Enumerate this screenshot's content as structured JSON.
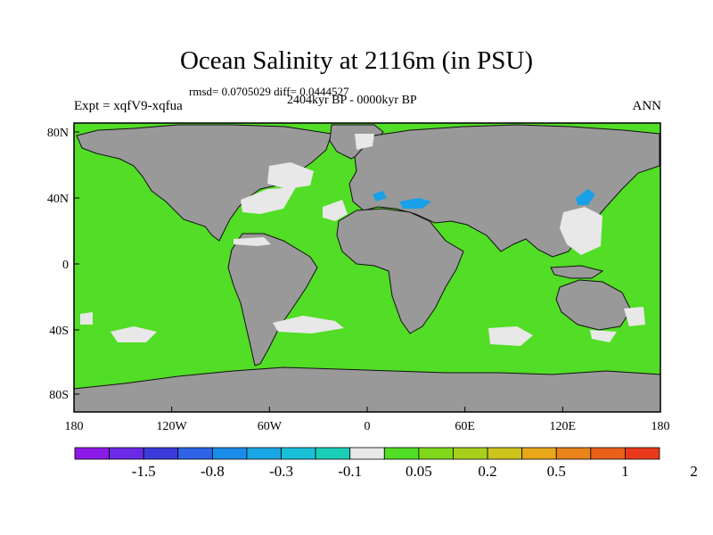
{
  "figure": {
    "title": "Ocean Salinity at 2116m (in PSU)",
    "stats": "rmsd= 0.0705029 diff= 0.0444527",
    "period": "2404kyr BP - 0000kyr BP",
    "experiment": "Expt = xqfV9-xqfua",
    "season": "ANN"
  },
  "map": {
    "projection": "cylindrical equidistant",
    "lon_range": [
      -180,
      180
    ],
    "lat_range": [
      -90,
      90
    ],
    "lat_ticks": [
      "80N",
      "40N",
      "0",
      "40S",
      "80S"
    ],
    "lon_ticks": [
      "180",
      "120W",
      "60W",
      "0",
      "60E",
      "120E",
      "180"
    ],
    "colors": {
      "land": "#999999",
      "ocean_background": "#52dd26",
      "near_zero": "#e8e8e8",
      "negative_patch": "#1aa0e8"
    }
  },
  "colorbar": {
    "colors": [
      "#8c1ae6",
      "#6a2ae6",
      "#3b3bdc",
      "#2f64e8",
      "#1a8ce8",
      "#19a7e6",
      "#19c0d8",
      "#1acfb8",
      "#e8e8e8",
      "#52dd26",
      "#80d81a",
      "#a8d01a",
      "#ccc41a",
      "#e8a81a",
      "#e8841a",
      "#e8601a",
      "#e83a1a"
    ],
    "labels": [
      "-1.5",
      "-0.8",
      "-0.3",
      "-0.1",
      "0.05",
      "0.2",
      "0.5",
      "1",
      "2"
    ]
  }
}
